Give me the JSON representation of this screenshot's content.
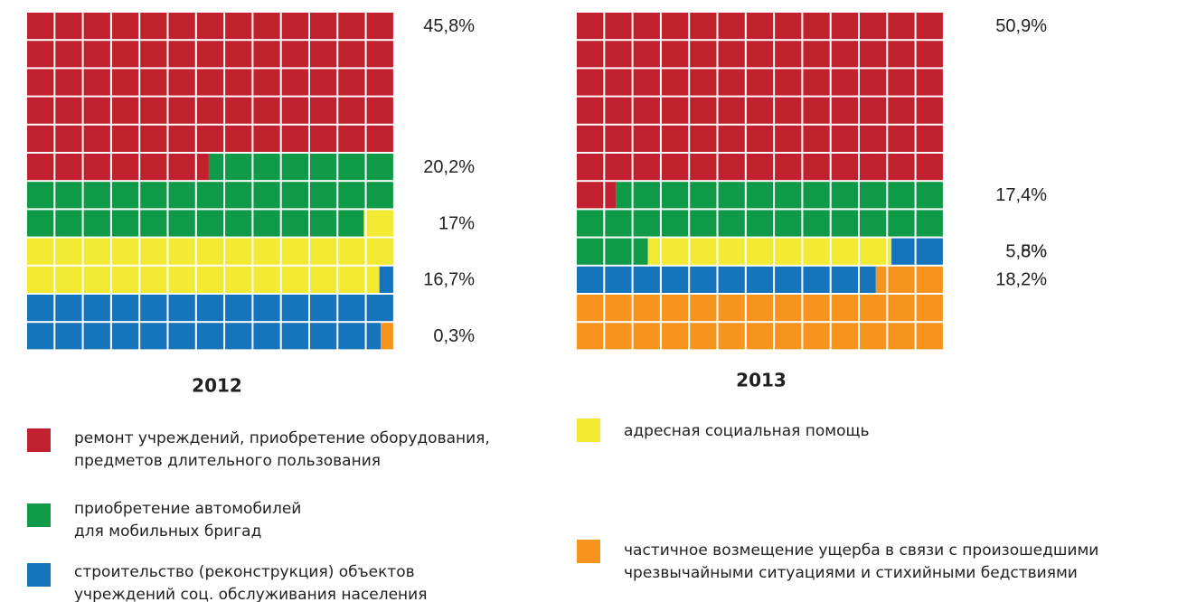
{
  "chart_data": [
    {
      "type": "waffle",
      "title": "2012",
      "values": [
        45.8,
        20.2,
        17,
        16.7,
        0.3
      ],
      "value_labels": [
        "45,8%",
        "20,2%",
        "17%",
        "16,7%",
        "0,3%"
      ]
    },
    {
      "type": "waffle",
      "title": "2013",
      "values": [
        50.9,
        17.4,
        5.5,
        8,
        18.2
      ],
      "value_labels": [
        "50,9%",
        "17,4%",
        "5,5%",
        "8%",
        "18,2%"
      ]
    }
  ],
  "legend": [
    {
      "color": "#c1202f",
      "lines": [
        "ремонт учреждений, приобретение оборудования,",
        "предметов длительного пользования"
      ]
    },
    {
      "color": "#0f9a48",
      "lines": [
        "приобретение автомобилей",
        "для мобильных бригад"
      ]
    },
    {
      "color": "#f3ea33",
      "lines": [
        "адресная социальная помощь"
      ]
    },
    {
      "color": "#1574bc",
      "lines": [
        "строительство (реконструкция) объектов",
        "учреждений соц. обслуживания населения"
      ]
    },
    {
      "color": "#f7941e",
      "lines": [
        "частичное возмещение ущерба в связи с произошедшими",
        "чрезвычайными ситуациями и стихийными бедствиями"
      ]
    }
  ]
}
